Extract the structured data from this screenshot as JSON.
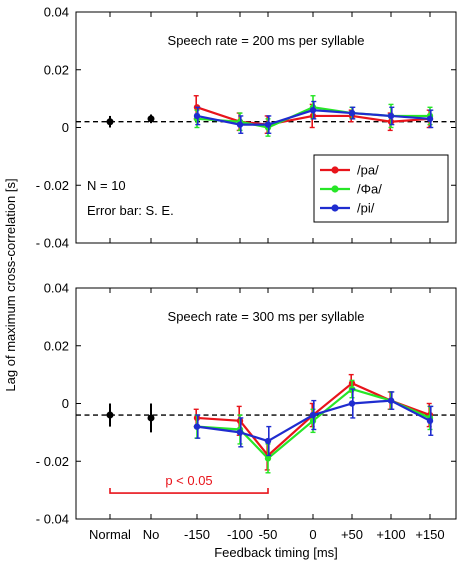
{
  "chart_data": {
    "type": "line",
    "ylabel": "Lag of maximum cross-correlation [s]",
    "xlabel": "Feedback timing [ms]",
    "categories": [
      "Normal",
      "No",
      "-150",
      "-100",
      "-50",
      "0",
      "+50",
      "+100",
      "+150"
    ],
    "yticks": [
      "0.04",
      "0.02",
      "0",
      "- 0.02",
      "- 0.04"
    ],
    "ylim": [
      -0.04,
      0.04
    ],
    "legend": {
      "placement": "right-lower",
      "items": [
        "/pa/",
        "/Φa/",
        "/pi/"
      ]
    },
    "colors": {
      "pa": "#e8141b",
      "phia": "#27e627",
      "pi": "#1f2ccf",
      "baseline": "#000000",
      "annotation": "#e8141b"
    },
    "panels": [
      {
        "title": "Speech rate = 200 ms per syllable",
        "annotations": [
          "N = 10",
          "Error bar: S. E."
        ],
        "reference_line": 0.002,
        "baseline": [
          {
            "x": "Normal",
            "y": 0.002,
            "err": 0.002
          },
          {
            "x": "No",
            "y": 0.003,
            "err": 0.0015
          }
        ],
        "series": [
          {
            "name": "/pa/",
            "key": "pa",
            "values": [
              0.007,
              0.002,
              0.001,
              0.004,
              0.004,
              0.002,
              0.003
            ],
            "errors": [
              0.004,
              0.003,
              0.003,
              0.004,
              0.002,
              0.003,
              0.003
            ]
          },
          {
            "name": "/Φa/",
            "key": "phia",
            "values": [
              0.003,
              0.002,
              0.0,
              0.007,
              0.005,
              0.004,
              0.004
            ],
            "errors": [
              0.003,
              0.003,
              0.003,
              0.004,
              0.002,
              0.004,
              0.003
            ]
          },
          {
            "name": "/pi/",
            "key": "pi",
            "values": [
              0.004,
              0.001,
              0.001,
              0.006,
              0.005,
              0.004,
              0.003
            ],
            "errors": [
              0.003,
              0.003,
              0.003,
              0.003,
              0.002,
              0.003,
              0.003
            ]
          }
        ]
      },
      {
        "title": "Speech rate = 300 ms per syllable",
        "annotations": [],
        "reference_line": -0.004,
        "baseline": [
          {
            "x": "Normal",
            "y": -0.004,
            "err": 0.004
          },
          {
            "x": "No",
            "y": -0.005,
            "err": 0.005
          }
        ],
        "bracket": {
          "label": "p < 0.05",
          "from": "Normal",
          "to": "-50",
          "y": -0.031
        },
        "series": [
          {
            "name": "/pa/",
            "key": "pa",
            "values": [
              -0.005,
              -0.006,
              -0.018,
              -0.004,
              0.007,
              0.001,
              -0.004
            ],
            "errors": [
              0.003,
              0.005,
              0.005,
              0.004,
              0.003,
              0.003,
              0.004
            ]
          },
          {
            "name": "/Φa/",
            "key": "phia",
            "values": [
              -0.008,
              -0.009,
              -0.019,
              -0.006,
              0.005,
              0.001,
              -0.005
            ],
            "errors": [
              0.004,
              0.005,
              0.005,
              0.004,
              0.003,
              0.003,
              0.004
            ]
          },
          {
            "name": "/pi/",
            "key": "pi",
            "values": [
              -0.008,
              -0.01,
              -0.013,
              -0.004,
              0.0,
              0.001,
              -0.006
            ],
            "errors": [
              0.004,
              0.005,
              0.005,
              0.005,
              0.005,
              0.003,
              0.005
            ]
          }
        ]
      }
    ]
  }
}
